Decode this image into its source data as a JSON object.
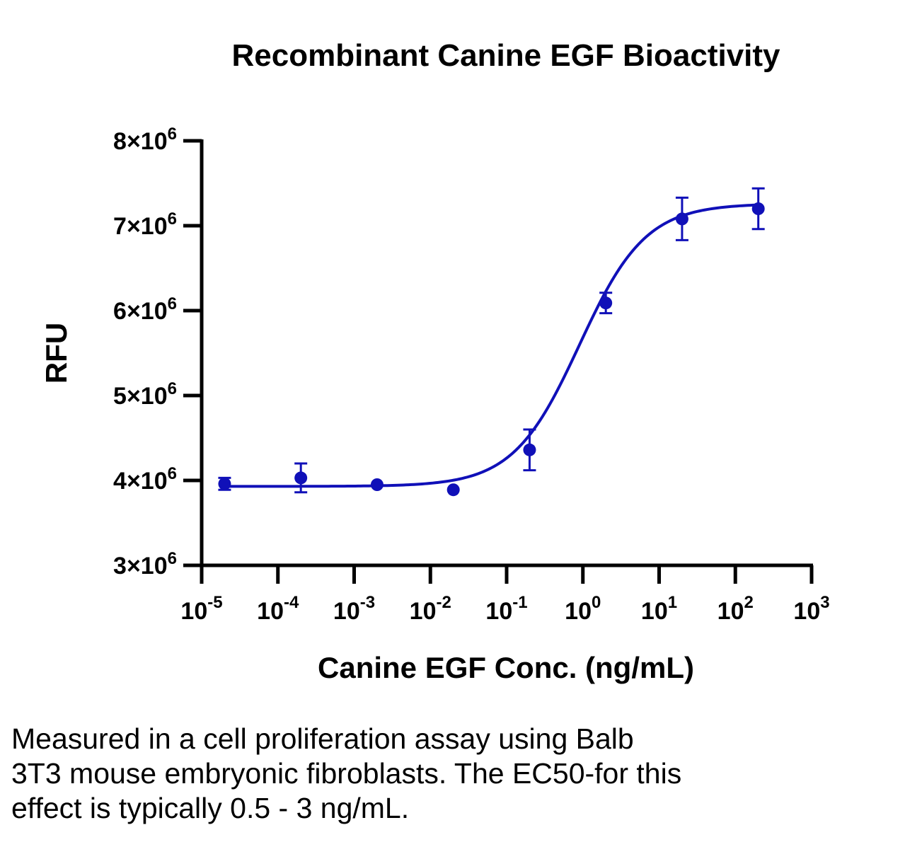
{
  "chart_data": {
    "type": "scatter",
    "title": "Recombinant Canine EGF Bioactivity",
    "xlabel": "Canine EGF Conc. (ng/mL)",
    "ylabel": "RFU",
    "x_scale": "log",
    "xlim": [
      1e-05,
      1000
    ],
    "ylim": [
      3000000,
      8000000
    ],
    "x_ticks": [
      {
        "base": "10",
        "exp": "-5",
        "value": 1e-05
      },
      {
        "base": "10",
        "exp": "-4",
        "value": 0.0001
      },
      {
        "base": "10",
        "exp": "-3",
        "value": 0.001
      },
      {
        "base": "10",
        "exp": "-2",
        "value": 0.01
      },
      {
        "base": "10",
        "exp": "-1",
        "value": 0.1
      },
      {
        "base": "10",
        "exp": "0",
        "value": 1
      },
      {
        "base": "10",
        "exp": "1",
        "value": 10
      },
      {
        "base": "10",
        "exp": "2",
        "value": 100
      },
      {
        "base": "10",
        "exp": "3",
        "value": 1000
      }
    ],
    "y_ticks": [
      {
        "mant": "3",
        "exp": "6",
        "value": 3000000
      },
      {
        "mant": "4",
        "exp": "6",
        "value": 4000000
      },
      {
        "mant": "5",
        "exp": "6",
        "value": 5000000
      },
      {
        "mant": "6",
        "exp": "6",
        "value": 6000000
      },
      {
        "mant": "7",
        "exp": "6",
        "value": 7000000
      },
      {
        "mant": "8",
        "exp": "6",
        "value": 8000000
      }
    ],
    "points": [
      {
        "x": 2e-05,
        "y": 3960000,
        "err": 70000
      },
      {
        "x": 0.0002,
        "y": 4030000,
        "err": 170000
      },
      {
        "x": 0.002,
        "y": 3950000,
        "err": 0
      },
      {
        "x": 0.02,
        "y": 3890000,
        "err": 0
      },
      {
        "x": 0.2,
        "y": 4360000,
        "err": 240000
      },
      {
        "x": 2,
        "y": 6090000,
        "err": 120000
      },
      {
        "x": 20,
        "y": 7080000,
        "err": 250000
      },
      {
        "x": 200,
        "y": 7200000,
        "err": 240000
      }
    ],
    "fit": {
      "model": "4PL",
      "bottom": 3930000,
      "top": 7260000,
      "ec50": 0.9,
      "hill": 1.0
    },
    "color": "#1010b8",
    "grid": false
  },
  "caption": {
    "lines": [
      "Measured in a cell proliferation assay using Balb",
      "3T3 mouse embryonic fibroblasts. The EC50-for this",
      "effect is typically 0.5 - 3 ng/mL."
    ]
  }
}
